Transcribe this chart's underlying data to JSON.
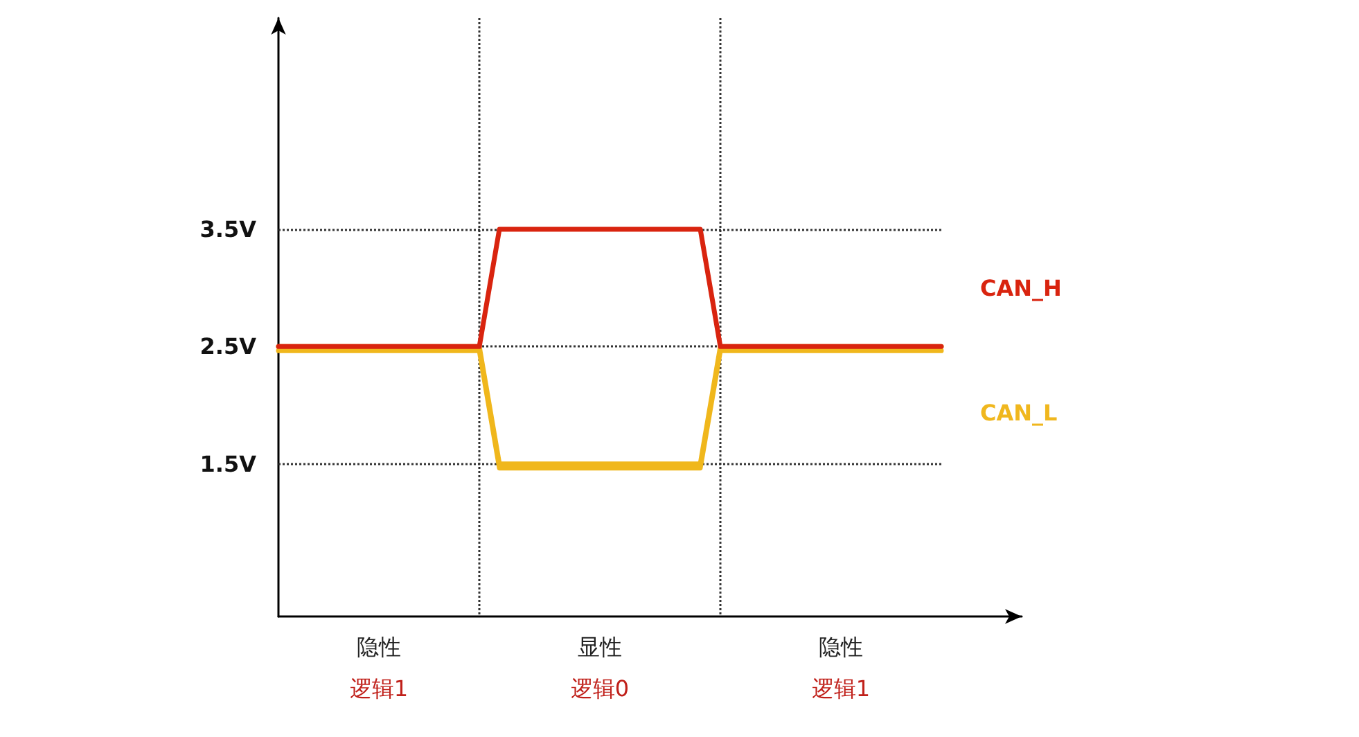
{
  "chart_data": {
    "type": "line",
    "categories": [
      null,
      null,
      null,
      null,
      null,
      "隐性",
      null,
      null,
      null,
      null,
      null,
      null,
      null,
      null,
      null,
      null,
      "显性",
      null,
      null,
      null,
      null,
      null,
      null,
      null,
      null,
      null,
      null,
      null,
      "隐性",
      null,
      null,
      null,
      null,
      null,
      null,
      null,
      null,
      null
    ],
    "annotations": [
      "逻辑1",
      "逻辑0",
      "逻辑1"
    ],
    "ylim": [
      0.2,
      5.3
    ],
    "yticks": [
      {
        "value": 1.5,
        "label": "1.5V"
      },
      {
        "value": 2.5,
        "label": "2.5V"
      },
      {
        "value": 3.5,
        "label": "3.5V"
      }
    ],
    "series": [
      {
        "name": "CAN_H",
        "color": "#d9240f",
        "values": [
          2.5,
          2.5,
          2.5,
          2.5,
          2.5,
          2.5,
          2.5,
          2.5,
          2.5,
          2.5,
          2.5,
          3.5,
          3.5,
          3.5,
          3.5,
          3.5,
          3.5,
          3.5,
          3.5,
          3.5,
          3.5,
          3.5,
          2.5,
          2.5,
          2.5,
          2.5,
          2.5,
          2.5,
          2.5,
          2.5,
          2.5,
          2.5,
          2.5,
          2.5,
          null,
          null,
          null,
          null
        ]
      },
      {
        "name": "CAN_L",
        "color": "#f0b71e",
        "values": [
          2.5,
          2.5,
          2.5,
          2.5,
          2.5,
          2.5,
          2.5,
          2.5,
          2.5,
          2.5,
          2.5,
          1.5,
          1.5,
          1.5,
          1.5,
          1.5,
          1.5,
          1.5,
          1.5,
          1.5,
          1.5,
          1.5,
          2.5,
          2.5,
          2.5,
          2.5,
          2.5,
          2.5,
          2.5,
          2.5,
          2.5,
          2.5,
          2.5,
          2.5,
          null,
          null,
          null,
          null
        ]
      }
    ],
    "ref_lines": [
      {
        "axis": "y",
        "value": 1.5,
        "line_style": "dotted",
        "color": "#333333"
      },
      {
        "axis": "y",
        "value": 2.5,
        "line_style": "dotted",
        "color": "#333333"
      },
      {
        "axis": "y",
        "value": 3.5,
        "line_style": "dotted",
        "color": "#333333"
      }
    ],
    "marker": "none",
    "line_style": "solid",
    "grid": "x",
    "legend": false
  }
}
